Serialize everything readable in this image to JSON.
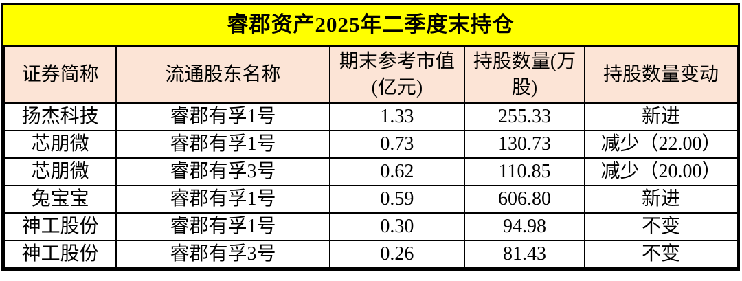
{
  "title": "睿郡资产2025年二季度末持仓",
  "colors": {
    "title_bg": "#FFFF00",
    "header_bg": "#FCE4D6",
    "row_bg": "#FFFFFF",
    "border": "#000000",
    "text": "#000000"
  },
  "table": {
    "headers": [
      "证券简称",
      "流通股东名称",
      "期末参考市值(亿元)",
      "持股数量(万股)",
      "持股数量变动"
    ],
    "rows": [
      [
        "扬杰科技",
        "睿郡有孚1号",
        "1.33",
        "255.33",
        "新进"
      ],
      [
        "芯朋微",
        "睿郡有孚1号",
        "0.73",
        "130.73",
        "减少（22.00）"
      ],
      [
        "芯朋微",
        "睿郡有孚3号",
        "0.62",
        "110.85",
        "减少（20.00）"
      ],
      [
        "兔宝宝",
        "睿郡有孚1号",
        "0.59",
        "606.80",
        "新进"
      ],
      [
        "神工股份",
        "睿郡有孚1号",
        "0.30",
        "94.98",
        "不变"
      ],
      [
        "神工股份",
        "睿郡有孚3号",
        "0.26",
        "81.43",
        "不变"
      ]
    ]
  }
}
